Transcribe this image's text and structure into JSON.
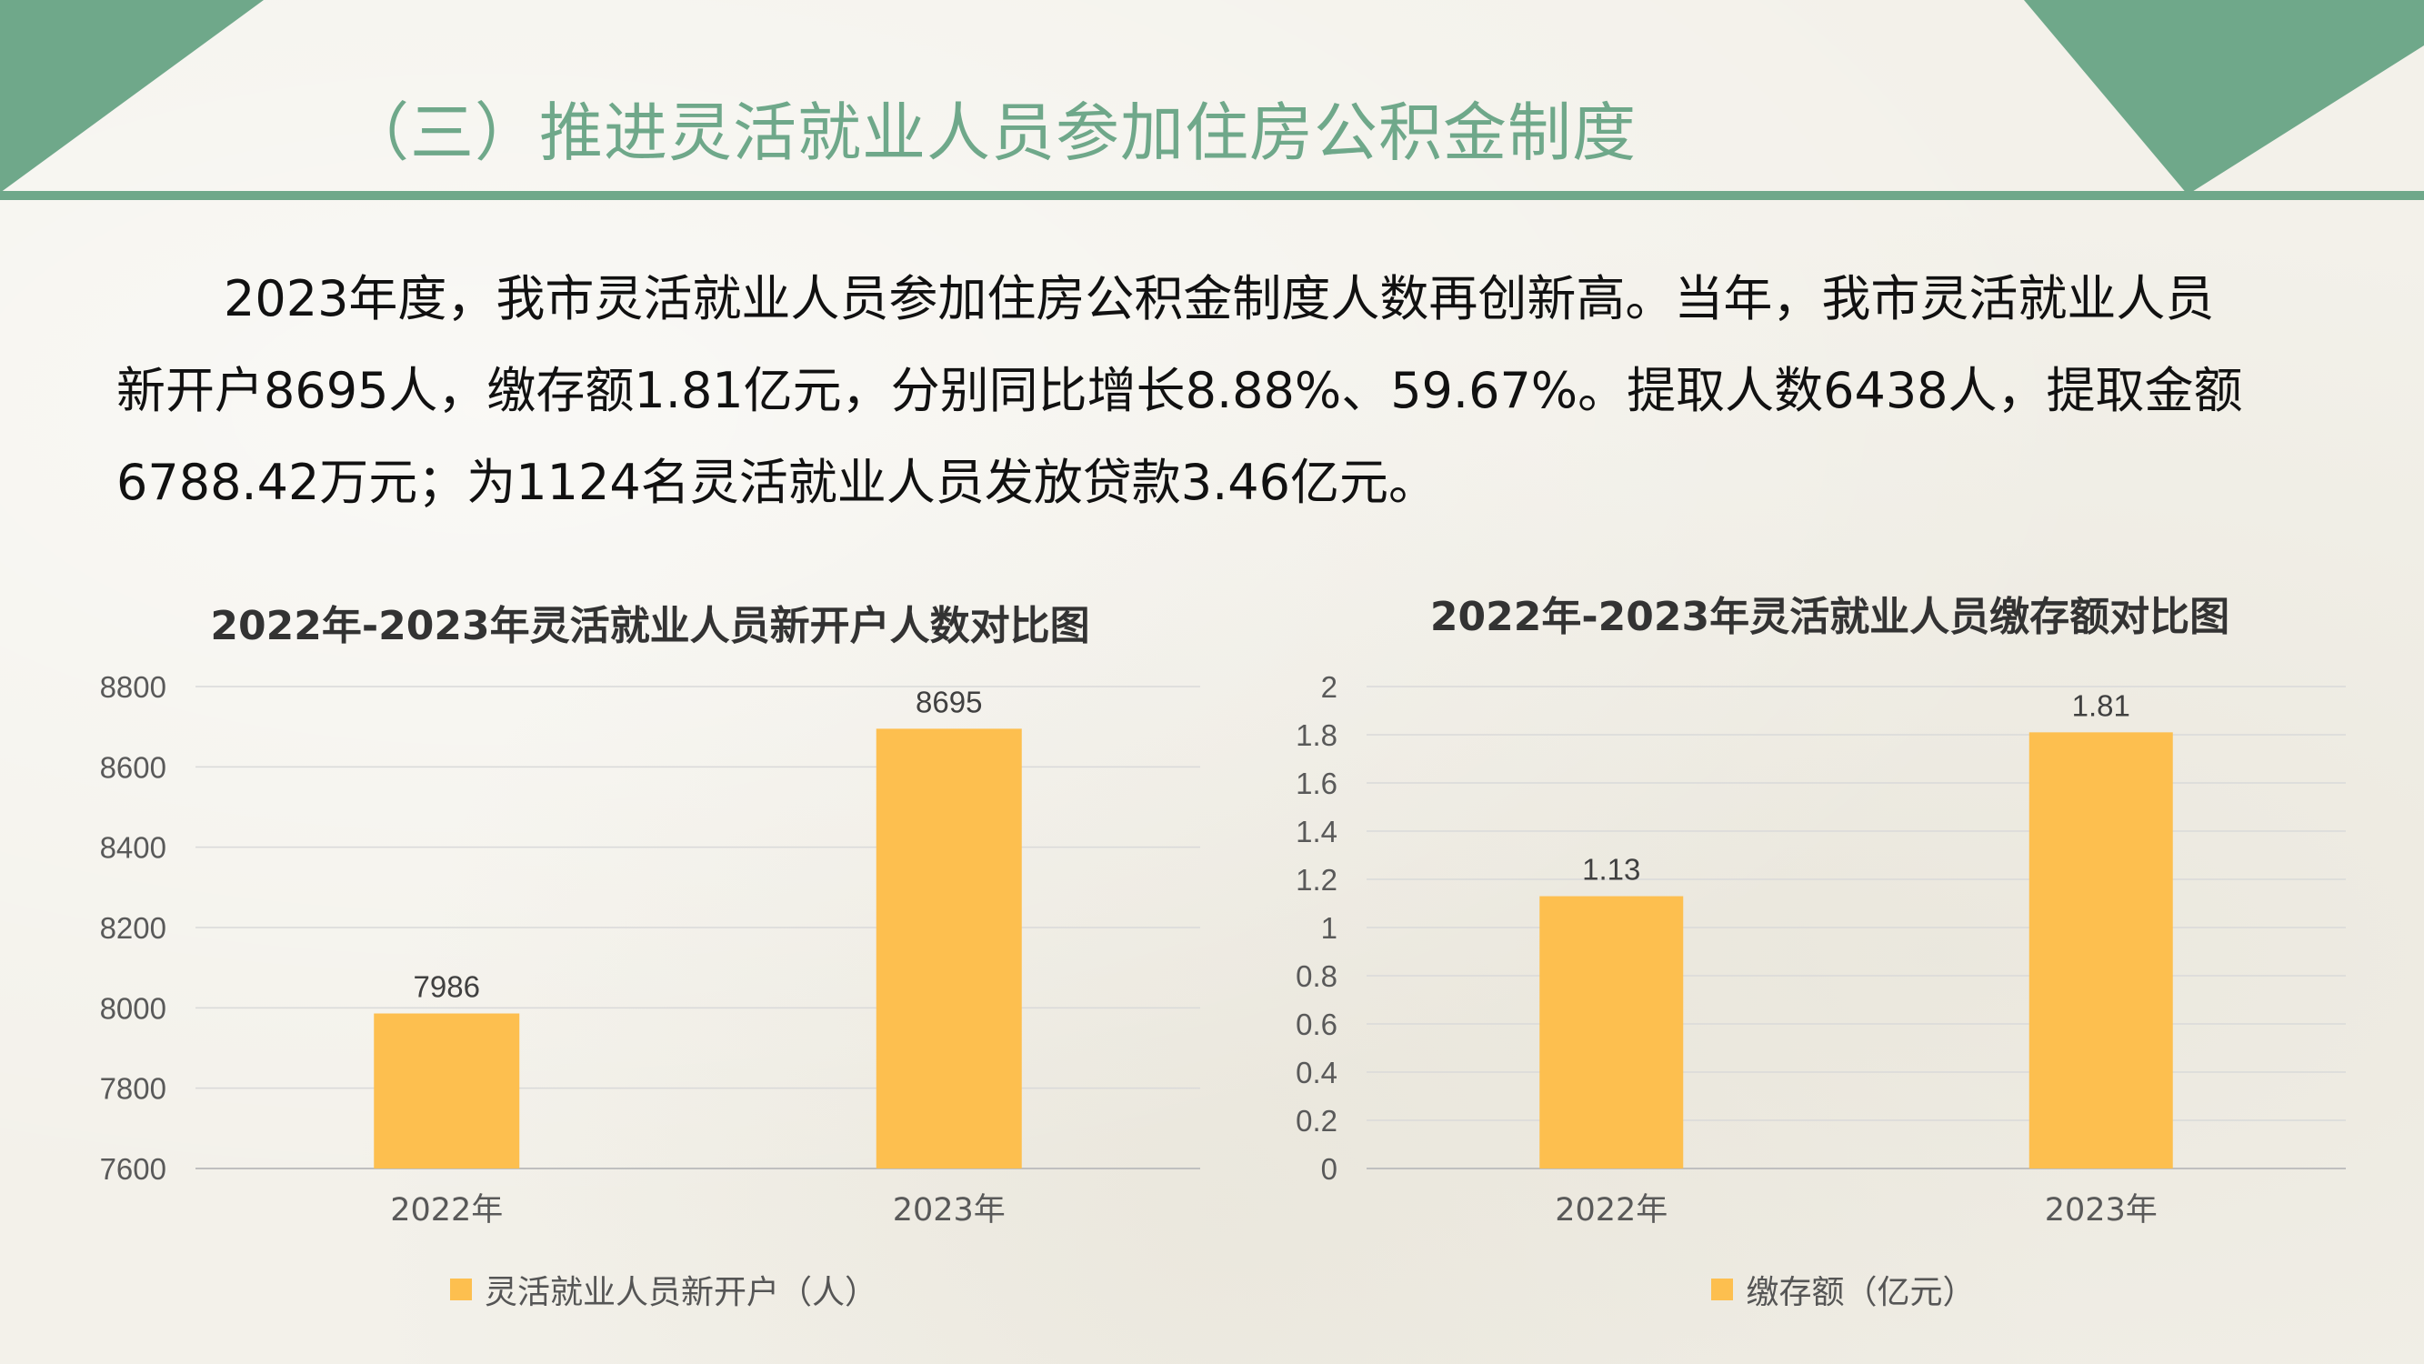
{
  "slide": {
    "title": "（三）推进灵活就业人员参加住房公积金制度",
    "paragraph_lines": [
      "2023年度，我市灵活就业人员参加住房公积金制度人数再创新高。当年，我市灵活就业人员",
      "新开户8695人，缴存额1.81亿元，分别同比增长8.88%、59.67%。提取人数6438人，提取金额",
      "6788.42万元；为1124名灵活就业人员发放贷款3.46亿元。"
    ]
  },
  "colors": {
    "accent": "#6fa88a",
    "bar": "#fdbf4f",
    "grid": "#d9d9d9",
    "axis_text": "#595959"
  },
  "chart_data": [
    {
      "type": "bar",
      "title": "2022年-2023年灵活就业人员新开户人数对比图",
      "categories": [
        "2022年",
        "2023年"
      ],
      "series": [
        {
          "name": "灵活就业人员新开户（人）",
          "values": [
            7986,
            8695
          ]
        }
      ],
      "ylim": [
        7600,
        8800
      ],
      "yticks": [
        7600,
        7800,
        8000,
        8200,
        8400,
        8600,
        8800
      ],
      "data_labels": [
        "7986",
        "8695"
      ],
      "grid": true,
      "legend": "bottom"
    },
    {
      "type": "bar",
      "title": "2022年-2023年灵活就业人员缴存额对比图",
      "categories": [
        "2022年",
        "2023年"
      ],
      "series": [
        {
          "name": "缴存额（亿元）",
          "values": [
            1.13,
            1.81
          ]
        }
      ],
      "ylim": [
        0,
        2
      ],
      "yticks": [
        0,
        0.2,
        0.4,
        0.6,
        0.8,
        1,
        1.2,
        1.4,
        1.6,
        1.8,
        2
      ],
      "ytick_labels": [
        "0",
        "0.2",
        "0.4",
        "0.6",
        "0.8",
        "1",
        "1.2",
        "1.4",
        "1.6",
        "1.8",
        "2"
      ],
      "data_labels": [
        "1.13",
        "1.81"
      ],
      "grid": true,
      "legend": "bottom"
    }
  ]
}
